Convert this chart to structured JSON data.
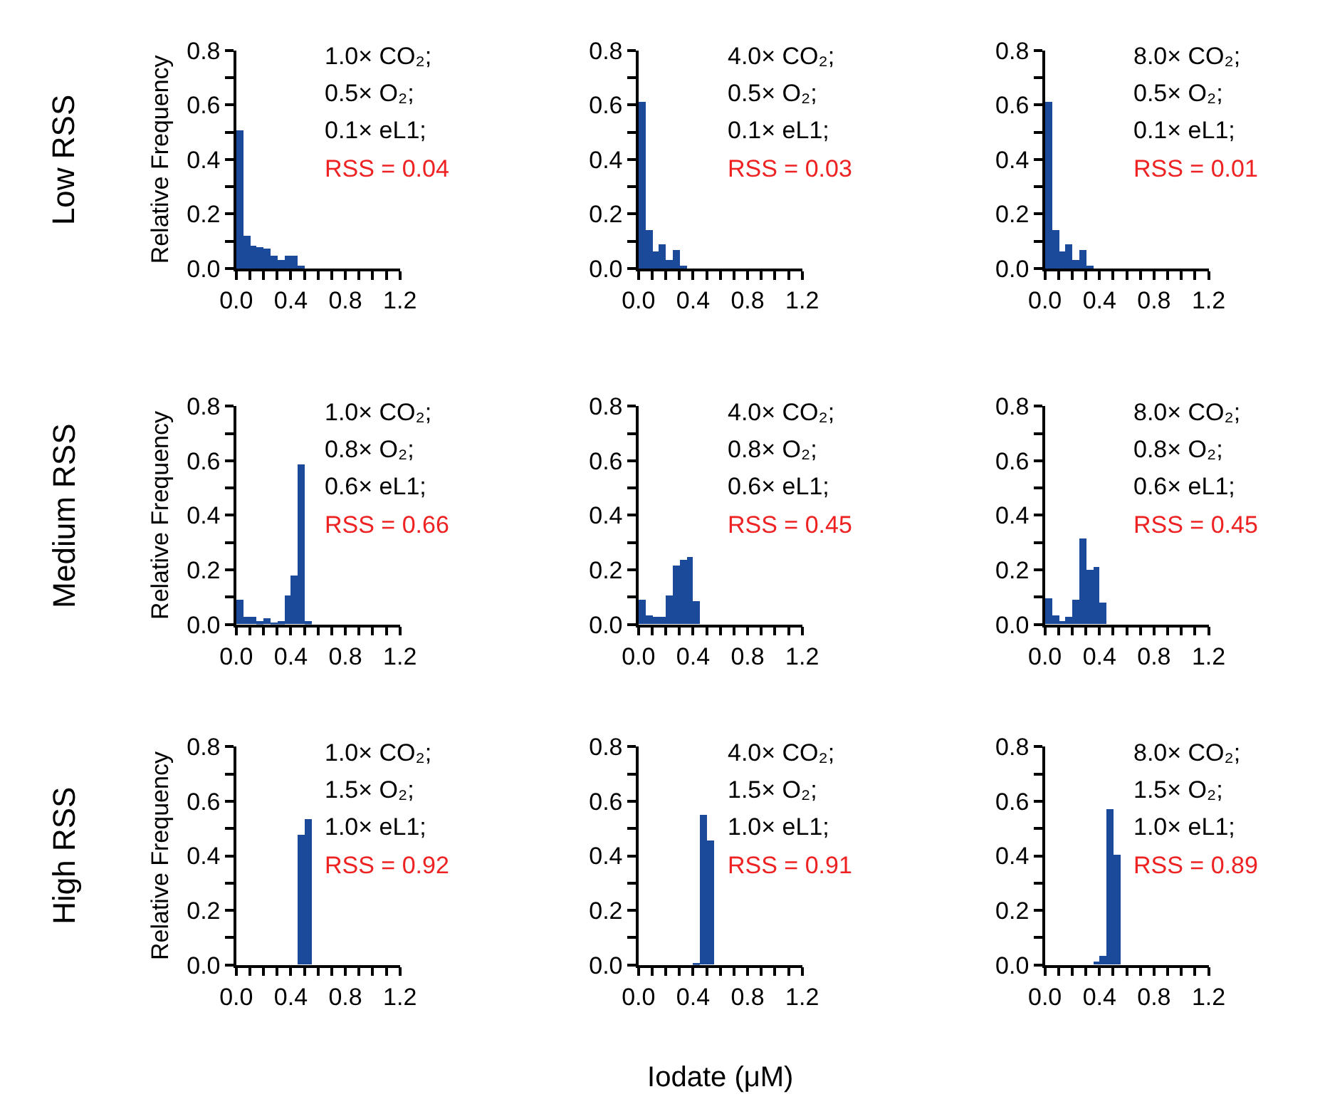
{
  "chart_data": [
    {
      "type": "histogram",
      "title": "Low RSS",
      "ylabel": "Relative Frequency",
      "annotations": [
        "1.0× CO₂;",
        "0.5× O₂;",
        "0.1× eL1;",
        "RSS = 0.04"
      ],
      "color": "#1c4a9b",
      "bins": [
        0,
        0.05,
        0.1,
        0.15,
        0.2,
        0.25,
        0.3,
        0.35,
        0.4,
        0.45,
        0.5
      ],
      "values": [
        0.51,
        0.12,
        0.085,
        0.08,
        0.075,
        0.05,
        0.03,
        0.05,
        0.05,
        0.01
      ],
      "xlim": [
        0,
        1.2
      ],
      "ylim": [
        0,
        0.8
      ],
      "xticks": [
        {
          "value": 0,
          "label": "0.0"
        },
        {
          "value": 0.1,
          "label": null
        },
        {
          "value": 0.2,
          "label": null
        },
        {
          "value": 0.3,
          "label": null
        },
        {
          "value": 0.4,
          "label": "0.4"
        },
        {
          "value": 0.5,
          "label": null
        },
        {
          "value": 0.6,
          "label": null
        },
        {
          "value": 0.7,
          "label": null
        },
        {
          "value": 0.8,
          "label": "0.8"
        },
        {
          "value": 0.9,
          "label": null
        },
        {
          "value": 1.0,
          "label": null
        },
        {
          "value": 1.1,
          "label": null
        },
        {
          "value": 1.2,
          "label": "1.2"
        }
      ],
      "yticks": [
        {
          "value": 0,
          "label": "0.0"
        },
        {
          "value": 0.1,
          "label": null
        },
        {
          "value": 0.2,
          "label": "0.2"
        },
        {
          "value": 0.3,
          "label": null
        },
        {
          "value": 0.4,
          "label": "0.4"
        },
        {
          "value": 0.5,
          "label": null
        },
        {
          "value": 0.6,
          "label": "0.6"
        },
        {
          "value": 0.7,
          "label": null
        },
        {
          "value": 0.8,
          "label": "0.8"
        }
      ]
    },
    {
      "type": "histogram",
      "annotations": [
        "4.0× CO₂;",
        "0.5× O₂;",
        "0.1× eL1;",
        "RSS = 0.03"
      ],
      "color": "#1c4a9b",
      "bins": [
        0,
        0.05,
        0.1,
        0.15,
        0.2,
        0.25,
        0.3,
        0.35
      ],
      "values": [
        0.61,
        0.14,
        0.064,
        0.09,
        0.03,
        0.068,
        0.014
      ],
      "xlim": [
        0,
        1.2
      ],
      "ylim": [
        0,
        0.8
      ],
      "xticks": [
        {
          "value": 0,
          "label": "0.0"
        },
        {
          "value": 0.1,
          "label": null
        },
        {
          "value": 0.2,
          "label": null
        },
        {
          "value": 0.3,
          "label": null
        },
        {
          "value": 0.4,
          "label": "0.4"
        },
        {
          "value": 0.5,
          "label": null
        },
        {
          "value": 0.6,
          "label": null
        },
        {
          "value": 0.7,
          "label": null
        },
        {
          "value": 0.8,
          "label": "0.8"
        },
        {
          "value": 0.9,
          "label": null
        },
        {
          "value": 1.0,
          "label": null
        },
        {
          "value": 1.1,
          "label": null
        },
        {
          "value": 1.2,
          "label": "1.2"
        }
      ],
      "yticks": [
        {
          "value": 0,
          "label": "0.0"
        },
        {
          "value": 0.1,
          "label": null
        },
        {
          "value": 0.2,
          "label": "0.2"
        },
        {
          "value": 0.3,
          "label": null
        },
        {
          "value": 0.4,
          "label": "0.4"
        },
        {
          "value": 0.5,
          "label": null
        },
        {
          "value": 0.6,
          "label": "0.6"
        },
        {
          "value": 0.7,
          "label": null
        },
        {
          "value": 0.8,
          "label": "0.8"
        }
      ]
    },
    {
      "type": "histogram",
      "annotations": [
        "8.0× CO₂;",
        "0.5× O₂;",
        "0.1× eL1;",
        "RSS = 0.01"
      ],
      "color": "#1c4a9b",
      "bins": [
        0,
        0.05,
        0.1,
        0.15,
        0.2,
        0.25,
        0.3,
        0.35
      ],
      "values": [
        0.61,
        0.14,
        0.064,
        0.09,
        0.03,
        0.068,
        0.014
      ],
      "xlim": [
        0,
        1.2
      ],
      "ylim": [
        0,
        0.8
      ],
      "xticks": [
        {
          "value": 0,
          "label": "0.0"
        },
        {
          "value": 0.1,
          "label": null
        },
        {
          "value": 0.2,
          "label": null
        },
        {
          "value": 0.3,
          "label": null
        },
        {
          "value": 0.4,
          "label": "0.4"
        },
        {
          "value": 0.5,
          "label": null
        },
        {
          "value": 0.6,
          "label": null
        },
        {
          "value": 0.7,
          "label": null
        },
        {
          "value": 0.8,
          "label": "0.8"
        },
        {
          "value": 0.9,
          "label": null
        },
        {
          "value": 1.0,
          "label": null
        },
        {
          "value": 1.1,
          "label": null
        },
        {
          "value": 1.2,
          "label": "1.2"
        }
      ],
      "yticks": [
        {
          "value": 0,
          "label": "0.0"
        },
        {
          "value": 0.1,
          "label": null
        },
        {
          "value": 0.2,
          "label": "0.2"
        },
        {
          "value": 0.3,
          "label": null
        },
        {
          "value": 0.4,
          "label": "0.4"
        },
        {
          "value": 0.5,
          "label": null
        },
        {
          "value": 0.6,
          "label": "0.6"
        },
        {
          "value": 0.7,
          "label": null
        },
        {
          "value": 0.8,
          "label": "0.8"
        }
      ]
    },
    {
      "type": "histogram",
      "title": "Medium RSS",
      "ylabel": "Relative Frequency",
      "annotations": [
        "1.0× CO₂;",
        "0.8× O₂;",
        "0.6× eL1;",
        "RSS = 0.66"
      ],
      "color": "#1c4a9b",
      "bins": [
        0,
        0.05,
        0.1,
        0.15,
        0.2,
        0.25,
        0.3,
        0.35,
        0.4,
        0.45,
        0.5,
        0.55
      ],
      "values": [
        0.09,
        0.025,
        0.025,
        0.01,
        0.02,
        0.005,
        0.01,
        0.107,
        0.18,
        0.586,
        0.01
      ],
      "xlim": [
        0,
        1.2
      ],
      "ylim": [
        0,
        0.8
      ],
      "xticks": [
        {
          "value": 0,
          "label": "0.0"
        },
        {
          "value": 0.1,
          "label": null
        },
        {
          "value": 0.2,
          "label": null
        },
        {
          "value": 0.3,
          "label": null
        },
        {
          "value": 0.4,
          "label": "0.4"
        },
        {
          "value": 0.5,
          "label": null
        },
        {
          "value": 0.6,
          "label": null
        },
        {
          "value": 0.7,
          "label": null
        },
        {
          "value": 0.8,
          "label": "0.8"
        },
        {
          "value": 0.9,
          "label": null
        },
        {
          "value": 1.0,
          "label": null
        },
        {
          "value": 1.1,
          "label": null
        },
        {
          "value": 1.2,
          "label": "1.2"
        }
      ],
      "yticks": [
        {
          "value": 0,
          "label": "0.0"
        },
        {
          "value": 0.1,
          "label": null
        },
        {
          "value": 0.2,
          "label": "0.2"
        },
        {
          "value": 0.3,
          "label": null
        },
        {
          "value": 0.4,
          "label": "0.4"
        },
        {
          "value": 0.5,
          "label": null
        },
        {
          "value": 0.6,
          "label": "0.6"
        },
        {
          "value": 0.7,
          "label": null
        },
        {
          "value": 0.8,
          "label": "0.8"
        }
      ]
    },
    {
      "type": "histogram",
      "annotations": [
        "4.0× CO₂;",
        "0.8× O₂;",
        "0.6× eL1;",
        "RSS = 0.45"
      ],
      "color": "#1c4a9b",
      "bins": [
        0,
        0.05,
        0.1,
        0.15,
        0.2,
        0.25,
        0.3,
        0.35,
        0.4,
        0.45
      ],
      "values": [
        0.09,
        0.03,
        0.025,
        0.025,
        0.103,
        0.214,
        0.234,
        0.247,
        0.085
      ],
      "xlim": [
        0,
        1.2
      ],
      "ylim": [
        0,
        0.8
      ],
      "xticks": [
        {
          "value": 0,
          "label": "0.0"
        },
        {
          "value": 0.1,
          "label": null
        },
        {
          "value": 0.2,
          "label": null
        },
        {
          "value": 0.3,
          "label": null
        },
        {
          "value": 0.4,
          "label": "0.4"
        },
        {
          "value": 0.5,
          "label": null
        },
        {
          "value": 0.6,
          "label": null
        },
        {
          "value": 0.7,
          "label": null
        },
        {
          "value": 0.8,
          "label": "0.8"
        },
        {
          "value": 0.9,
          "label": null
        },
        {
          "value": 1.0,
          "label": null
        },
        {
          "value": 1.1,
          "label": null
        },
        {
          "value": 1.2,
          "label": "1.2"
        }
      ],
      "yticks": [
        {
          "value": 0,
          "label": "0.0"
        },
        {
          "value": 0.1,
          "label": null
        },
        {
          "value": 0.2,
          "label": "0.2"
        },
        {
          "value": 0.3,
          "label": null
        },
        {
          "value": 0.4,
          "label": "0.4"
        },
        {
          "value": 0.5,
          "label": null
        },
        {
          "value": 0.6,
          "label": "0.6"
        },
        {
          "value": 0.7,
          "label": null
        },
        {
          "value": 0.8,
          "label": "0.8"
        }
      ]
    },
    {
      "type": "histogram",
      "annotations": [
        "8.0× CO₂;",
        "0.8× O₂;",
        "0.6× eL1;",
        "RSS = 0.45"
      ],
      "color": "#1c4a9b",
      "bins": [
        0,
        0.05,
        0.1,
        0.15,
        0.2,
        0.25,
        0.3,
        0.35,
        0.4,
        0.45
      ],
      "values": [
        0.095,
        0.03,
        0.014,
        0.027,
        0.09,
        0.314,
        0.2,
        0.212,
        0.081
      ],
      "xlim": [
        0,
        1.2
      ],
      "ylim": [
        0,
        0.8
      ],
      "xticks": [
        {
          "value": 0,
          "label": "0.0"
        },
        {
          "value": 0.1,
          "label": null
        },
        {
          "value": 0.2,
          "label": null
        },
        {
          "value": 0.3,
          "label": null
        },
        {
          "value": 0.4,
          "label": "0.4"
        },
        {
          "value": 0.5,
          "label": null
        },
        {
          "value": 0.6,
          "label": null
        },
        {
          "value": 0.7,
          "label": null
        },
        {
          "value": 0.8,
          "label": "0.8"
        },
        {
          "value": 0.9,
          "label": null
        },
        {
          "value": 1.0,
          "label": null
        },
        {
          "value": 1.1,
          "label": null
        },
        {
          "value": 1.2,
          "label": "1.2"
        }
      ],
      "yticks": [
        {
          "value": 0,
          "label": "0.0"
        },
        {
          "value": 0.1,
          "label": null
        },
        {
          "value": 0.2,
          "label": "0.2"
        },
        {
          "value": 0.3,
          "label": null
        },
        {
          "value": 0.4,
          "label": "0.4"
        },
        {
          "value": 0.5,
          "label": null
        },
        {
          "value": 0.6,
          "label": "0.6"
        },
        {
          "value": 0.7,
          "label": null
        },
        {
          "value": 0.8,
          "label": "0.8"
        }
      ]
    },
    {
      "type": "histogram",
      "title": "High RSS",
      "ylabel": "Relative Frequency",
      "annotations": [
        "1.0× CO₂;",
        "1.5× O₂;",
        "1.0× eL1;",
        "RSS = 0.92"
      ],
      "color": "#1c4a9b",
      "bins": [
        0.45,
        0.5,
        0.55
      ],
      "values": [
        0.475,
        0.536
      ],
      "xlim": [
        0,
        1.2
      ],
      "ylim": [
        0,
        0.8
      ],
      "xticks": [
        {
          "value": 0,
          "label": "0.0"
        },
        {
          "value": 0.1,
          "label": null
        },
        {
          "value": 0.2,
          "label": null
        },
        {
          "value": 0.3,
          "label": null
        },
        {
          "value": 0.4,
          "label": "0.4"
        },
        {
          "value": 0.5,
          "label": null
        },
        {
          "value": 0.6,
          "label": null
        },
        {
          "value": 0.7,
          "label": null
        },
        {
          "value": 0.8,
          "label": "0.8"
        },
        {
          "value": 0.9,
          "label": null
        },
        {
          "value": 1.0,
          "label": null
        },
        {
          "value": 1.1,
          "label": null
        },
        {
          "value": 1.2,
          "label": "1.2"
        }
      ],
      "yticks": [
        {
          "value": 0,
          "label": "0.0"
        },
        {
          "value": 0.1,
          "label": null
        },
        {
          "value": 0.2,
          "label": "0.2"
        },
        {
          "value": 0.3,
          "label": null
        },
        {
          "value": 0.4,
          "label": "0.4"
        },
        {
          "value": 0.5,
          "label": null
        },
        {
          "value": 0.6,
          "label": "0.6"
        },
        {
          "value": 0.7,
          "label": null
        },
        {
          "value": 0.8,
          "label": "0.8"
        }
      ]
    },
    {
      "type": "histogram",
      "xlabel": "Iodate (μM)",
      "annotations": [
        "4.0× CO₂;",
        "1.5× O₂;",
        "1.0× eL1;",
        "RSS = 0.91"
      ],
      "color": "#1c4a9b",
      "bins": [
        0.4,
        0.45,
        0.5,
        0.55
      ],
      "values": [
        0.005,
        0.551,
        0.454
      ],
      "xlim": [
        0,
        1.2
      ],
      "ylim": [
        0,
        0.8
      ],
      "xticks": [
        {
          "value": 0,
          "label": "0.0"
        },
        {
          "value": 0.1,
          "label": null
        },
        {
          "value": 0.2,
          "label": null
        },
        {
          "value": 0.3,
          "label": null
        },
        {
          "value": 0.4,
          "label": "0.4"
        },
        {
          "value": 0.5,
          "label": null
        },
        {
          "value": 0.6,
          "label": null
        },
        {
          "value": 0.7,
          "label": null
        },
        {
          "value": 0.8,
          "label": "0.8"
        },
        {
          "value": 0.9,
          "label": null
        },
        {
          "value": 1.0,
          "label": null
        },
        {
          "value": 1.1,
          "label": null
        },
        {
          "value": 1.2,
          "label": "1.2"
        }
      ],
      "yticks": [
        {
          "value": 0,
          "label": "0.0"
        },
        {
          "value": 0.1,
          "label": null
        },
        {
          "value": 0.2,
          "label": "0.2"
        },
        {
          "value": 0.3,
          "label": null
        },
        {
          "value": 0.4,
          "label": "0.4"
        },
        {
          "value": 0.5,
          "label": null
        },
        {
          "value": 0.6,
          "label": "0.6"
        },
        {
          "value": 0.7,
          "label": null
        },
        {
          "value": 0.8,
          "label": "0.8"
        }
      ]
    },
    {
      "type": "histogram",
      "annotations": [
        "8.0× CO₂;",
        "1.5× O₂;",
        "1.0× eL1;",
        "RSS = 0.89"
      ],
      "color": "#1c4a9b",
      "bins": [
        0.35,
        0.4,
        0.45,
        0.5,
        0.55
      ],
      "values": [
        0.014,
        0.03,
        0.568,
        0.403
      ],
      "xlim": [
        0,
        1.2
      ],
      "ylim": [
        0,
        0.8
      ],
      "xticks": [
        {
          "value": 0,
          "label": "0.0"
        },
        {
          "value": 0.1,
          "label": null
        },
        {
          "value": 0.2,
          "label": null
        },
        {
          "value": 0.3,
          "label": null
        },
        {
          "value": 0.4,
          "label": "0.4"
        },
        {
          "value": 0.5,
          "label": null
        },
        {
          "value": 0.6,
          "label": null
        },
        {
          "value": 0.7,
          "label": null
        },
        {
          "value": 0.8,
          "label": "0.8"
        },
        {
          "value": 0.9,
          "label": null
        },
        {
          "value": 1.0,
          "label": null
        },
        {
          "value": 1.1,
          "label": null
        },
        {
          "value": 1.2,
          "label": "1.2"
        }
      ],
      "yticks": [
        {
          "value": 0,
          "label": "0.0"
        },
        {
          "value": 0.1,
          "label": null
        },
        {
          "value": 0.2,
          "label": "0.2"
        },
        {
          "value": 0.3,
          "label": null
        },
        {
          "value": 0.4,
          "label": "0.4"
        },
        {
          "value": 0.5,
          "label": null
        },
        {
          "value": 0.6,
          "label": "0.6"
        },
        {
          "value": 0.7,
          "label": null
        },
        {
          "value": 0.8,
          "label": "0.8"
        }
      ]
    }
  ]
}
